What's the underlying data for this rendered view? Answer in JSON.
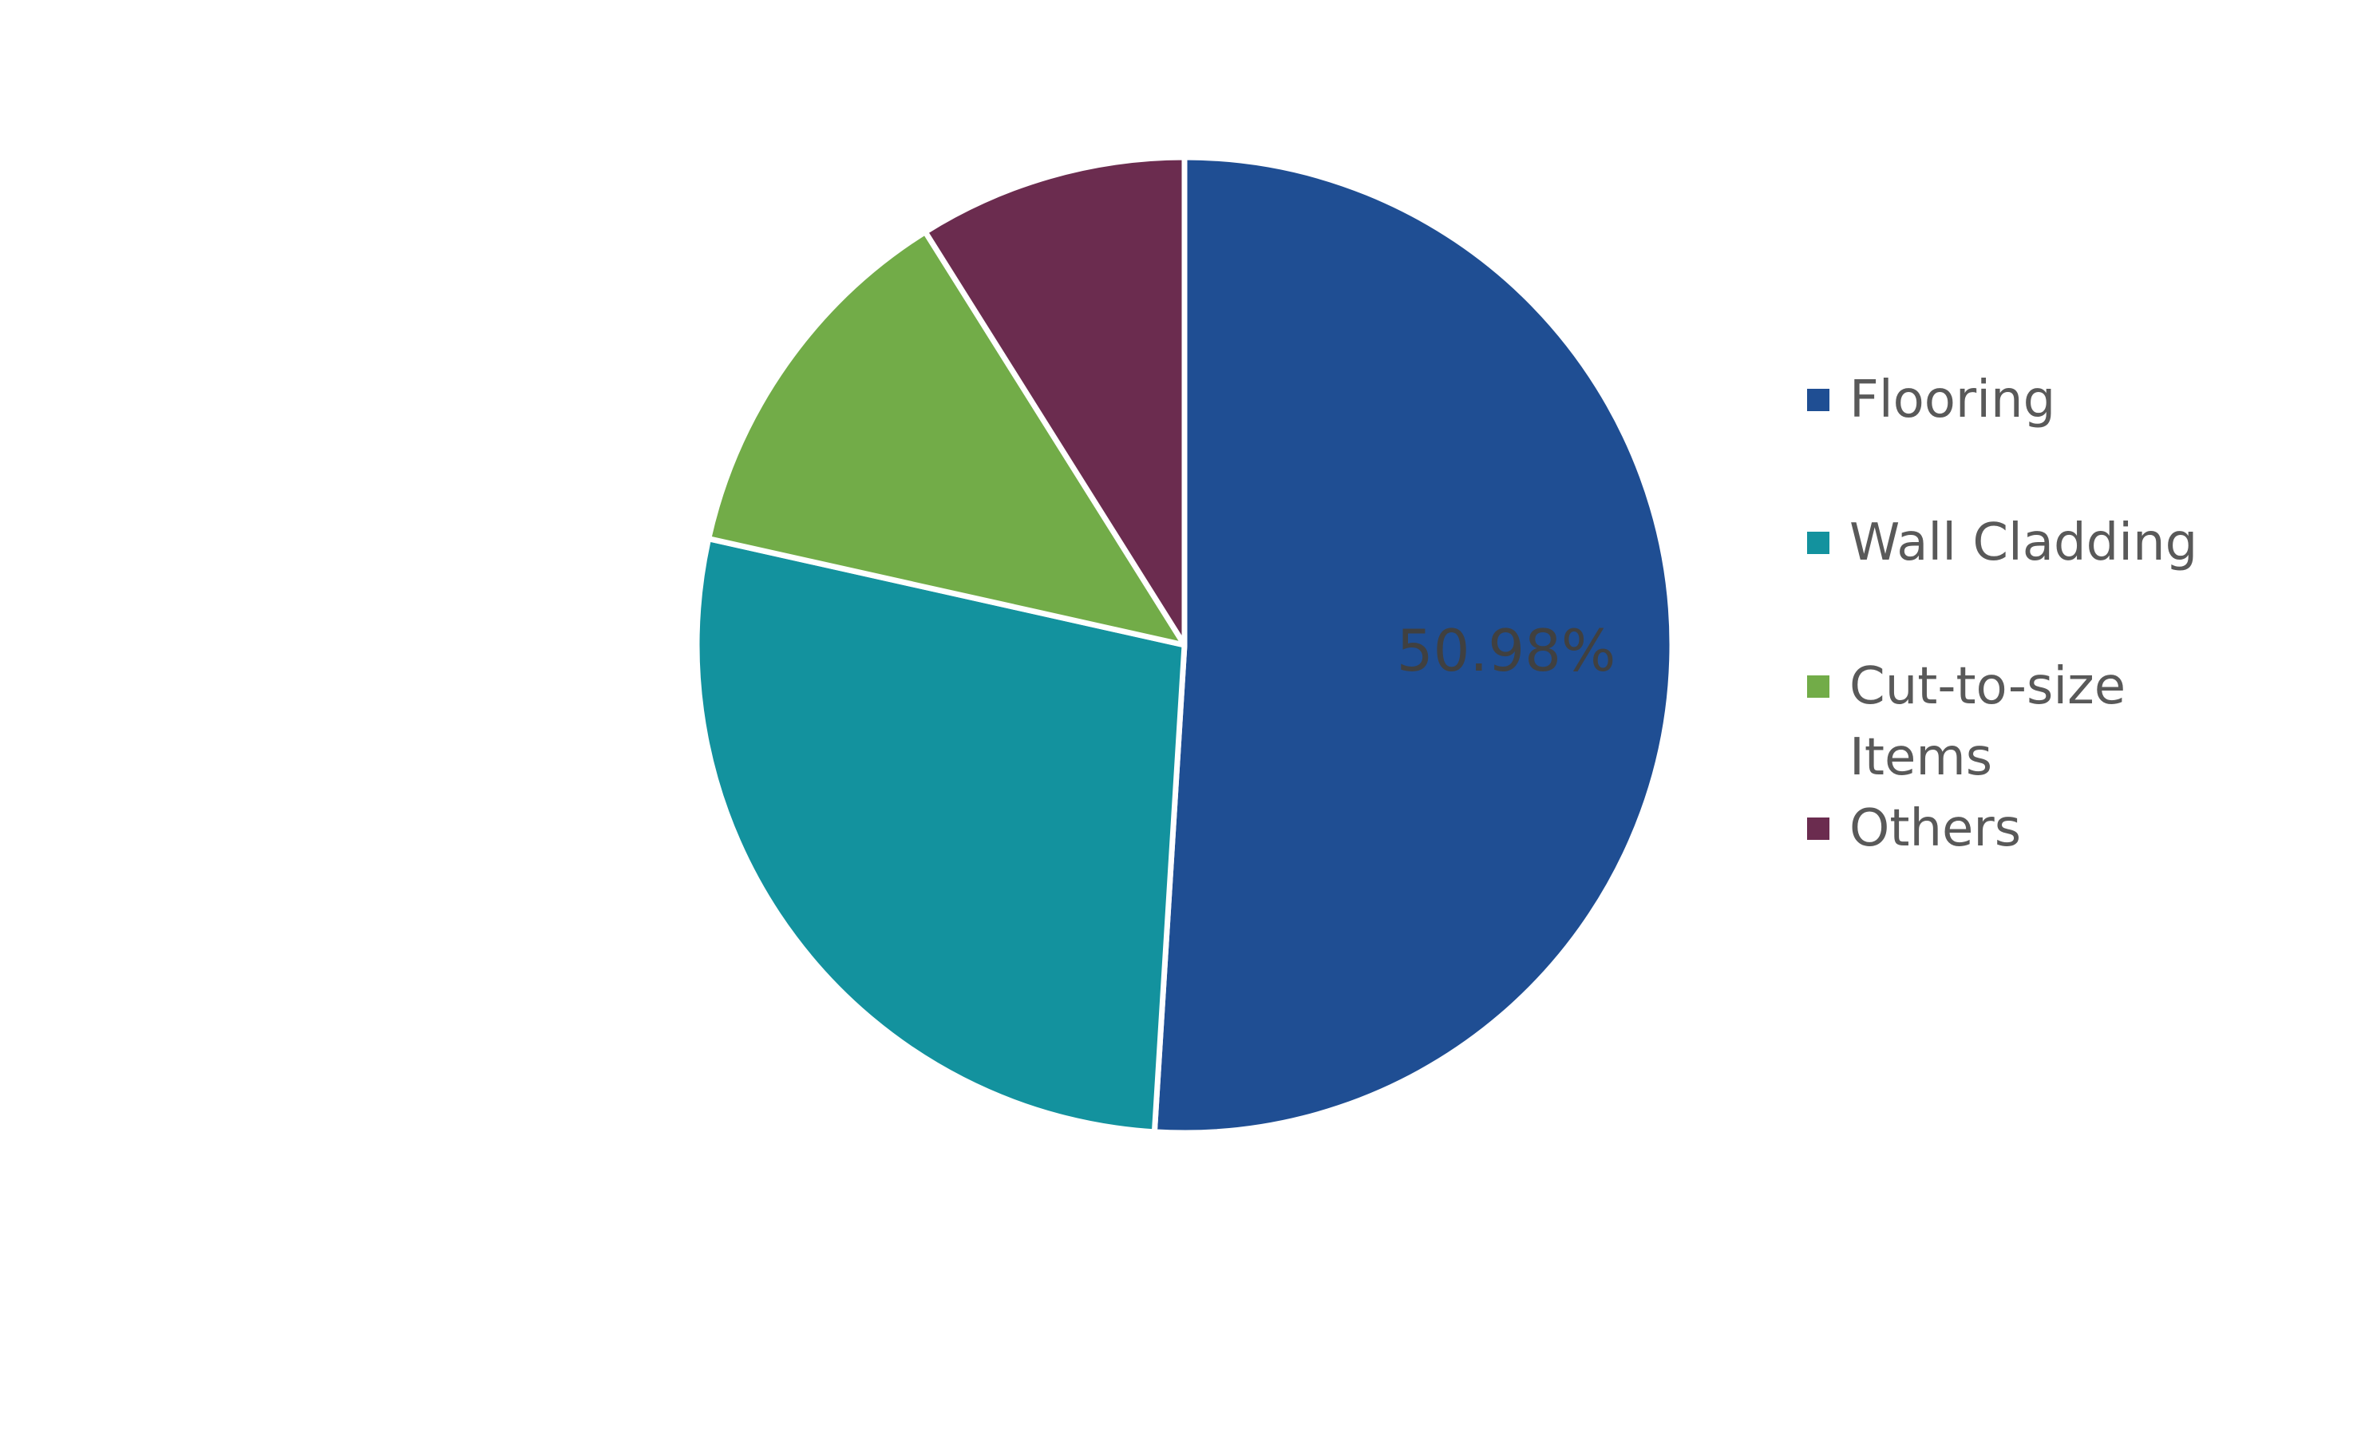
{
  "chart_data": {
    "type": "pie",
    "categories": [
      "Flooring",
      "Wall Cladding",
      "Cut-to-size Items",
      "Others"
    ],
    "values": [
      50.98,
      27.52,
      12.58,
      8.92
    ],
    "value_labels": [
      "50.98%",
      null,
      null,
      null
    ],
    "colors": [
      "#1f4e93",
      "#13929e",
      "#72ac48",
      "#6b2c4f"
    ],
    "legend": "right"
  }
}
